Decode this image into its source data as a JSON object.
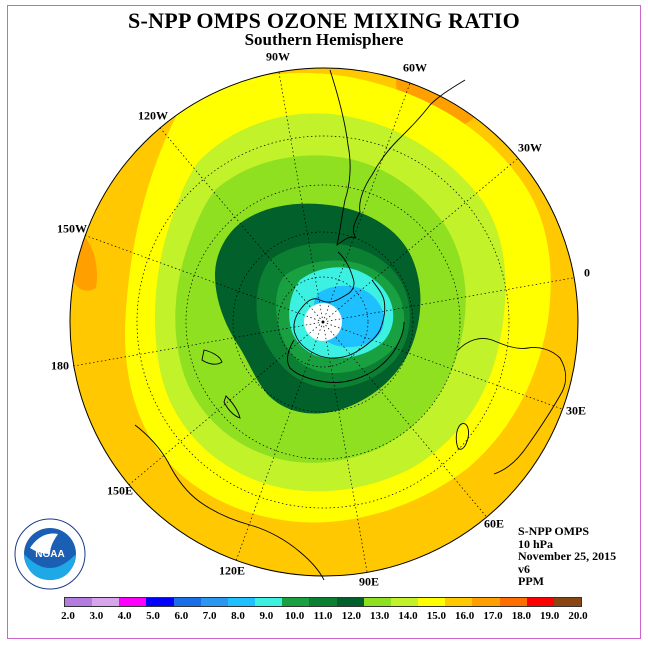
{
  "header": {
    "title": "S-NPP OMPS OZONE MIXING RATIO",
    "subtitle": "Southern Hemisphere"
  },
  "map": {
    "projection": "polar stereographic, south pole centered",
    "longitude_labels": [
      "90W",
      "60W",
      "30W",
      "0",
      "30E",
      "60E",
      "90E",
      "120E",
      "150E",
      "180",
      "150W",
      "120W"
    ],
    "ozone_field": {
      "units": "PPM",
      "polar_center_value": "below 2.0 (no data)",
      "inner_core_max_level": "9.0-10.0",
      "outer_band_max_level": "15.0-16.0",
      "local_max_near_150W": "16.0-17.0"
    }
  },
  "info": {
    "instrument": "S-NPP OMPS",
    "level": "10 hPa",
    "date": "November 25, 2015",
    "version": "v6",
    "units": "PPM"
  },
  "logo": {
    "icon": "noaa-logo-icon",
    "text": "NOAA",
    "ring_text": "NATIONAL OCEANIC AND ATMOSPHERIC ADMINISTRATION · U.S. DEPARTMENT OF COMMERCE"
  },
  "colorbar": {
    "labels": [
      "2.0",
      "3.0",
      "4.0",
      "5.0",
      "6.0",
      "7.0",
      "8.0",
      "9.0",
      "10.0",
      "11.0",
      "12.0",
      "13.0",
      "14.0",
      "15.0",
      "16.0",
      "17.0",
      "18.0",
      "19.0",
      "20.0"
    ],
    "colors": [
      "#b27ce0",
      "#d7a5ec",
      "#ff00ff",
      "#0000ff",
      "#1a6ee8",
      "#2c97f0",
      "#1ec0ff",
      "#3cf0e2",
      "#19a040",
      "#0c8032",
      "#02602a",
      "#90e022",
      "#c2f22a",
      "#ffff00",
      "#ffc800",
      "#ffa000",
      "#ff6e00",
      "#ff0000",
      "#8b4513"
    ]
  }
}
